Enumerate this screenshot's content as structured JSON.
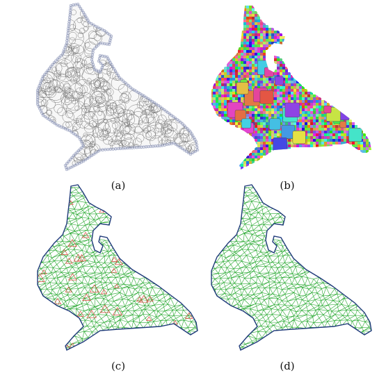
{
  "figure": {
    "panels": [
      {
        "id": "a",
        "caption": "(a)",
        "style": "circle-packing"
      },
      {
        "id": "b",
        "caption": "(b)",
        "style": "voronoi-color"
      },
      {
        "id": "c",
        "caption": "(c)",
        "style": "mesh-highlighted"
      },
      {
        "id": "d",
        "caption": "(d)",
        "style": "mesh-clean"
      }
    ],
    "colors": {
      "outline_blue": "#1f3a7a",
      "circle_gray": "#777777",
      "mesh_green": "#21a62a",
      "highlight_red": "#d9443a",
      "background": "#ffffff"
    }
  }
}
